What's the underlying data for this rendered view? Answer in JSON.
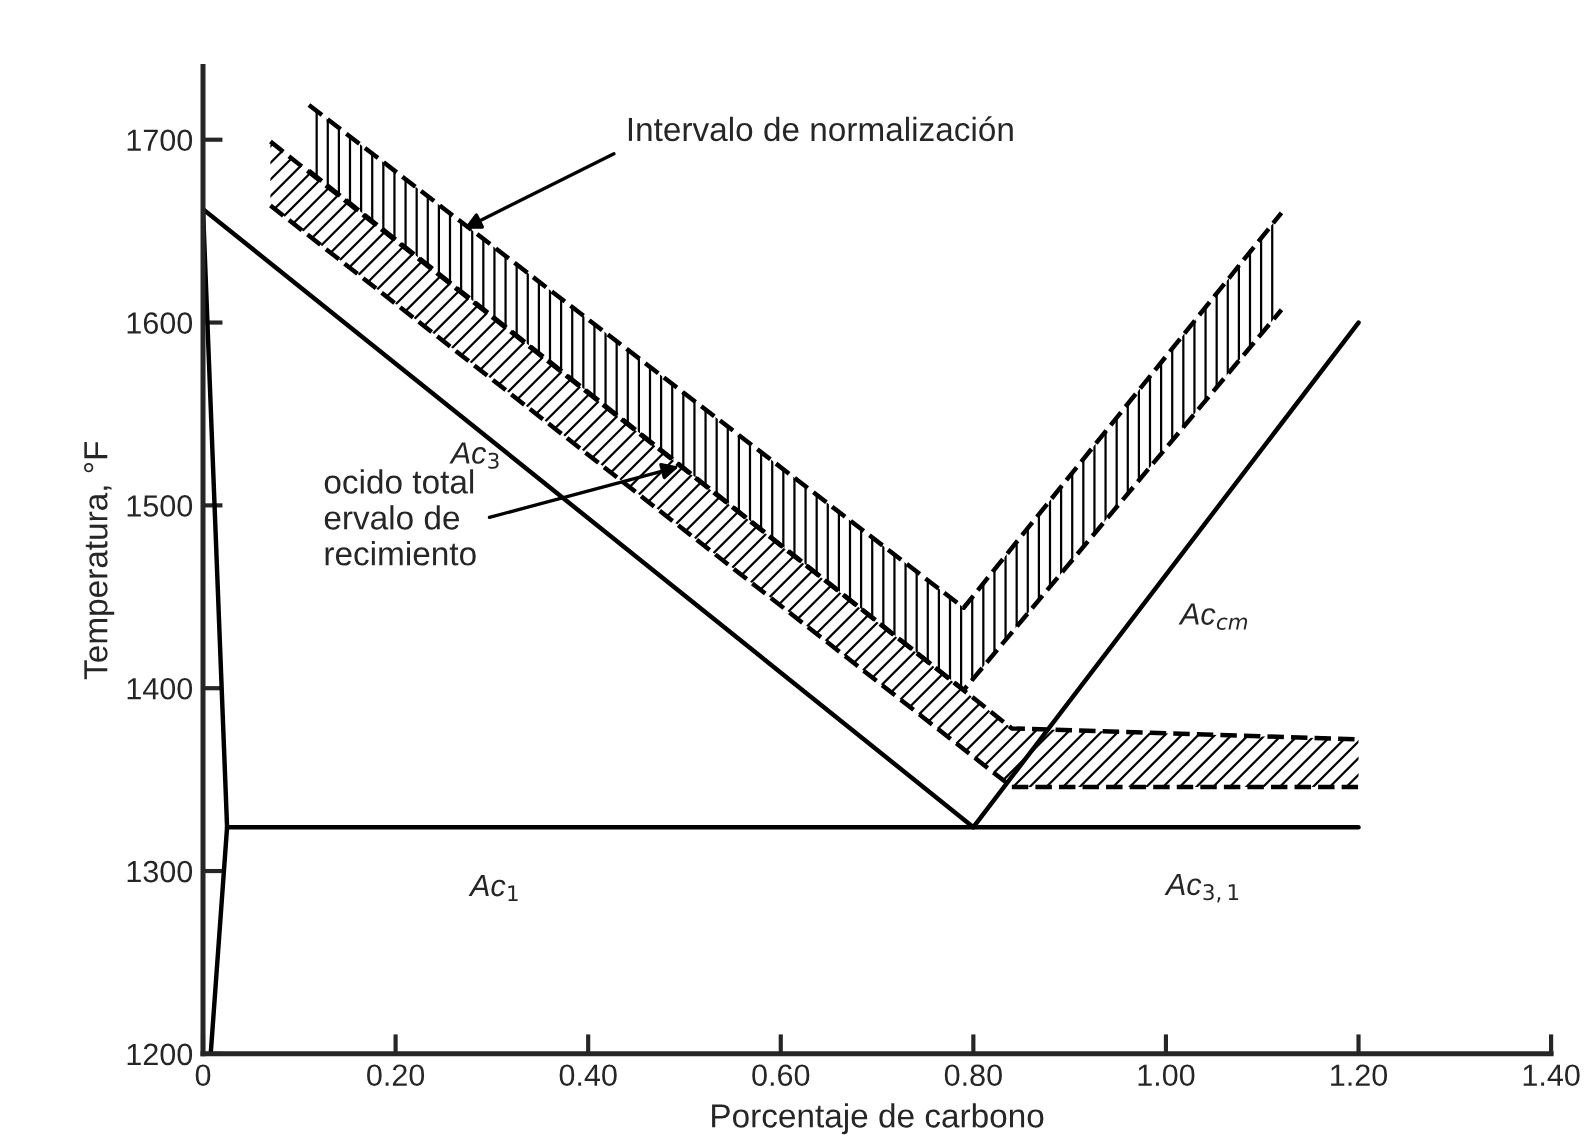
{
  "chart_data": {
    "type": "line",
    "xlabel": "Porcentaje de carbono",
    "ylabel": "Temperatura, °F",
    "xlim": [
      0,
      1.4
    ],
    "xticks": [
      {
        "value": 0,
        "label": "0"
      },
      {
        "value": 0.2,
        "label": "0.20"
      },
      {
        "value": 0.4,
        "label": "0.40"
      },
      {
        "value": 0.6,
        "label": "0.60"
      },
      {
        "value": 0.8,
        "label": "0.80"
      },
      {
        "value": 1.0,
        "label": "1.00"
      },
      {
        "value": 1.2,
        "label": "1.20"
      },
      {
        "value": 1.4,
        "label": "1.40"
      }
    ],
    "ylim": [
      1200,
      1740
    ],
    "yticks": [
      1200,
      1300,
      1400,
      1500,
      1600,
      1700
    ],
    "grid": false,
    "series": [
      {
        "color": "#000000",
        "x": [
          0.008,
          0.025,
          0
        ],
        "values": [
          1200,
          1324,
          1662
        ]
      },
      {
        "name": "Ac$_{3}$",
        "color": "#000000",
        "x": [
          0,
          0.8
        ],
        "values": [
          1662,
          1324
        ]
      },
      {
        "name": "Ac$_{1}$",
        "color": "#000000",
        "x": [
          0.025,
          1.2
        ],
        "values": [
          1324,
          1324
        ]
      },
      {
        "name": "Ac$_{cm}$",
        "color": "#000000",
        "x": [
          0.8,
          1.2
        ],
        "values": [
          1324,
          1600
        ]
      },
      {
        "type": "line",
        "color": "#000000",
        "line_style": "dashed",
        "x": [
          0.11,
          0.79,
          1.12
        ],
        "values": [
          1719,
          1444,
          1660
        ]
      },
      {
        "type": "line",
        "color": "#000000",
        "line_style": "dashed",
        "x": [
          0.11,
          0.79,
          1.12
        ],
        "values": [
          1683,
          1399,
          1607
        ]
      },
      {
        "type": "line",
        "color": "#000000",
        "line_style": "dashed",
        "x": [
          0.07,
          0.84,
          1.2
        ],
        "values": [
          1699,
          1378,
          1372
        ]
      },
      {
        "type": "line",
        "color": "#000000",
        "line_style": "dashed",
        "x": [
          0.07,
          0.84,
          1.2
        ],
        "values": [
          1664,
          1346,
          1346
        ]
      }
    ],
    "annotations": [
      {
        "text": "Intervalo de normalización",
        "x": 0.266,
        "y": 1650
      },
      {
        "text": "ocido total\nervalo de\nrecimiento",
        "x": 0.5,
        "y": 1522
      },
      {
        "text": "Ac$_{3,1}$",
        "x": 1.0,
        "y": 1324
      }
    ]
  }
}
